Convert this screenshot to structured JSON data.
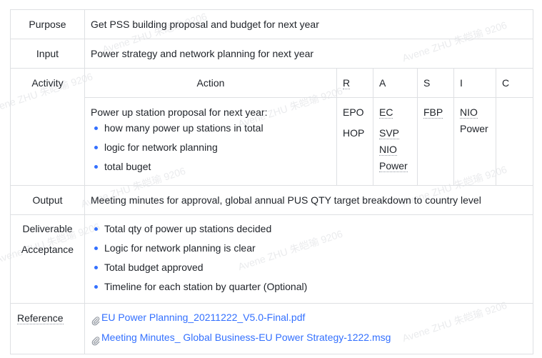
{
  "rows": {
    "purpose": {
      "label": "Purpose",
      "value": "Get PSS building proposal and budget for next year"
    },
    "input": {
      "label": "Input",
      "value": "Power strategy and network planning for next year"
    },
    "activity": {
      "label": "Activity",
      "headers": {
        "action": "Action",
        "r": "R",
        "a": "A",
        "s": "S",
        "i": "I",
        "c": "C"
      },
      "action_intro": "Power up station proposal for next year:",
      "action_items": [
        "how many power up stations in total",
        "logic for network planning",
        "total buget"
      ],
      "r": [
        "EPO",
        "HOP"
      ],
      "a": [
        "EC",
        "SVP",
        "NIO",
        "Power"
      ],
      "s": [
        "FBP"
      ],
      "i": [
        "NIO",
        "Power"
      ],
      "c": []
    },
    "output": {
      "label": "Output",
      "value": "Meeting minutes for approval, global annual PUS QTY target breakdown to country level"
    },
    "deliverable": {
      "label_line1": "Deliverable",
      "label_line2": "Acceptance",
      "items": [
        "Total qty of power up stations decided",
        "Logic for network planning is clear",
        "Total budget approved",
        "Timeline for each station by quarter (Optional)"
      ]
    },
    "reference": {
      "label": "Reference",
      "files": [
        "EU Power Planning_20211222_V5.0-Final.pdf",
        "Meeting Minutes_ Global Business-EU Power Strategy-1222.msg"
      ]
    }
  },
  "watermark": "Avene ZHU 朱皑瑜 9206",
  "icons": {
    "attachment": "paperclip-icon"
  }
}
